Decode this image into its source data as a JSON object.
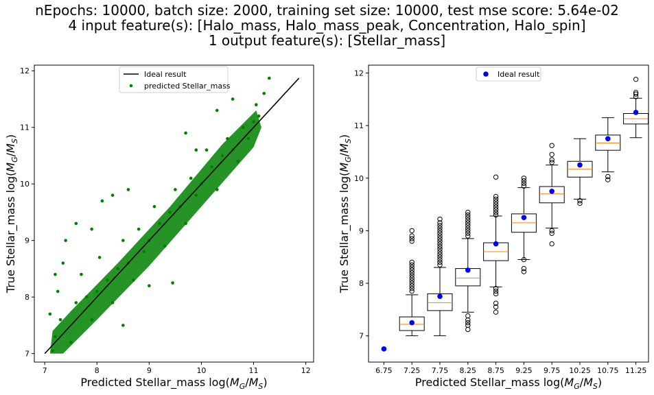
{
  "figure": {
    "title_lines": [
      "nEpochs: 10000, batch size: 2000, training set size: 10000, test mse score: 5.64e-02",
      "4 input feature(s): [Halo_mass, Halo_mass_peak, Concentration, Halo_spin]",
      "1 output feature(s): [Stellar_mass]"
    ]
  },
  "chart_data": [
    {
      "type": "scatter",
      "xlabel": "Predicted Stellar_mass log(M_G/M_S)",
      "ylabel": "True Stellar_mass log(M_G/M_S)",
      "xlim": [
        6.8,
        12.15
      ],
      "ylim": [
        6.85,
        12.1
      ],
      "xticks": [
        7,
        8,
        9,
        10,
        11,
        12
      ],
      "yticks": [
        7,
        8,
        9,
        10,
        11,
        12
      ],
      "legend_position": "top-center",
      "series": [
        {
          "name": "Ideal result",
          "style": "line",
          "color": "#000000",
          "x": [
            7.0,
            11.87
          ],
          "y": [
            7.0,
            11.87
          ]
        },
        {
          "name": "predicted Stellar_mass",
          "style": "points",
          "color": "#008000",
          "points": [
            [
              7.15,
              7.05
            ],
            [
              7.2,
              7.3
            ],
            [
              7.3,
              7.6
            ],
            [
              7.25,
              8.1
            ],
            [
              7.35,
              8.6
            ],
            [
              7.5,
              7.2
            ],
            [
              7.6,
              7.9
            ],
            [
              7.7,
              8.4
            ],
            [
              7.8,
              8.0
            ],
            [
              7.9,
              7.6
            ],
            [
              8.0,
              8.1
            ],
            [
              8.05,
              8.7
            ],
            [
              8.2,
              8.3
            ],
            [
              8.3,
              7.9
            ],
            [
              8.4,
              8.5
            ],
            [
              8.5,
              9.0
            ],
            [
              8.6,
              8.6
            ],
            [
              8.7,
              8.3
            ],
            [
              8.8,
              9.2
            ],
            [
              8.9,
              8.8
            ],
            [
              9.0,
              9.0
            ],
            [
              9.1,
              9.6
            ],
            [
              9.2,
              9.3
            ],
            [
              9.3,
              8.9
            ],
            [
              9.4,
              9.5
            ],
            [
              9.5,
              9.9
            ],
            [
              9.6,
              9.6
            ],
            [
              9.7,
              9.3
            ],
            [
              9.8,
              10.1
            ],
            [
              9.9,
              9.8
            ],
            [
              10.0,
              10.0
            ],
            [
              10.1,
              10.6
            ],
            [
              10.2,
              10.3
            ],
            [
              10.3,
              9.9
            ],
            [
              10.4,
              10.5
            ],
            [
              10.5,
              10.8
            ],
            [
              10.6,
              10.6
            ],
            [
              10.7,
              10.4
            ],
            [
              10.8,
              11.0
            ],
            [
              10.9,
              10.8
            ],
            [
              11.0,
              11.1
            ],
            [
              11.05,
              11.4
            ],
            [
              11.1,
              11.2
            ],
            [
              11.2,
              11.6
            ],
            [
              11.3,
              11.87
            ],
            [
              7.4,
              9.0
            ],
            [
              7.6,
              9.3
            ],
            [
              8.1,
              9.7
            ],
            [
              7.9,
              9.2
            ],
            [
              9.45,
              8.25
            ],
            [
              8.5,
              7.5
            ],
            [
              9.0,
              8.2
            ],
            [
              7.1,
              7.7
            ],
            [
              7.2,
              8.4
            ],
            [
              8.3,
              9.8
            ],
            [
              8.6,
              9.9
            ],
            [
              9.7,
              10.9
            ],
            [
              10.3,
              11.3
            ],
            [
              10.6,
              11.5
            ],
            [
              9.9,
              10.6
            ]
          ]
        }
      ]
    },
    {
      "type": "box",
      "xlabel": "Predicted Stellar_mass log(M_G/M_S)",
      "ylabel": "True Stellar_mass log(M_G/M_S)",
      "ylim": [
        6.5,
        12.15
      ],
      "yticks": [
        7,
        8,
        9,
        10,
        11,
        12
      ],
      "categories": [
        "6.75",
        "7.25",
        "7.75",
        "8.25",
        "8.75",
        "9.25",
        "9.75",
        "10.25",
        "10.75",
        "11.25"
      ],
      "legend_position": "top-center",
      "colors": {
        "box": "#000000",
        "median": "#ff7f0e",
        "ideal": "#0000ff"
      },
      "ideal_series": {
        "name": "Ideal result",
        "values": [
          6.75,
          7.25,
          7.75,
          8.25,
          8.75,
          9.25,
          9.75,
          10.25,
          10.75,
          11.25
        ]
      },
      "boxes": [
        null,
        {
          "whislo": 7.0,
          "q1": 7.1,
          "med": 7.22,
          "q3": 7.36,
          "whishi": 7.78,
          "fliers": [
            7.85,
            7.9,
            7.95,
            8.0,
            8.05,
            8.1,
            8.15,
            8.2,
            8.25,
            8.3,
            8.35,
            8.4,
            8.8,
            8.85,
            8.9,
            9.0
          ]
        },
        {
          "whislo": 7.0,
          "q1": 7.48,
          "med": 7.63,
          "q3": 7.8,
          "whishi": 8.3,
          "fliers": [
            8.35,
            8.4,
            8.45,
            8.5,
            8.55,
            8.6,
            8.65,
            8.7,
            8.75,
            8.8,
            8.85,
            8.9,
            8.95,
            9.0,
            9.05,
            9.1,
            9.15,
            9.22
          ]
        },
        {
          "whislo": 7.45,
          "q1": 7.95,
          "med": 8.1,
          "q3": 8.28,
          "whishi": 8.85,
          "fliers": [
            7.12,
            7.2,
            7.25,
            7.3,
            7.38,
            8.9,
            8.95,
            9.0,
            9.05,
            9.1,
            9.15,
            9.2,
            9.25,
            9.3,
            9.35
          ]
        },
        {
          "whislo": 7.93,
          "q1": 8.43,
          "med": 8.6,
          "q3": 8.77,
          "whishi": 9.28,
          "fliers": [
            7.45,
            7.55,
            7.62,
            7.8,
            7.85,
            7.9,
            9.3,
            9.35,
            9.4,
            9.45,
            9.5,
            9.55,
            9.6,
            9.65,
            10.02
          ]
        },
        {
          "whislo": 8.45,
          "q1": 8.97,
          "med": 9.15,
          "q3": 9.32,
          "whishi": 9.82,
          "fliers": [
            8.22,
            8.28,
            8.45,
            9.85,
            9.9,
            9.95,
            10.0
          ]
        },
        {
          "whislo": 9.05,
          "q1": 9.53,
          "med": 9.7,
          "q3": 9.84,
          "whishi": 10.25,
          "fliers": [
            8.75,
            8.95,
            9.0,
            10.3,
            10.35,
            10.45,
            10.62
          ]
        },
        {
          "whislo": 9.6,
          "q1": 10.02,
          "med": 10.17,
          "q3": 10.32,
          "whishi": 10.75,
          "fliers": [
            9.52,
            9.57
          ]
        },
        {
          "whislo": 10.12,
          "q1": 10.53,
          "med": 10.67,
          "q3": 10.82,
          "whishi": 11.15,
          "fliers": [
            9.97,
            10.03
          ]
        },
        {
          "whislo": 10.77,
          "q1": 11.03,
          "med": 11.13,
          "q3": 11.23,
          "whishi": 11.52,
          "fliers": [
            11.55,
            11.6,
            11.63,
            11.88
          ]
        }
      ]
    }
  ]
}
